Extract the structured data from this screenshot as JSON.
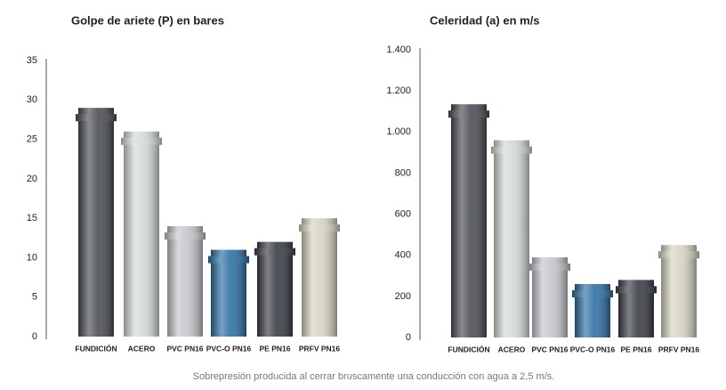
{
  "chart_data": [
    {
      "type": "bar",
      "title": "Golpe de ariete (P) en bares",
      "categories": [
        "FUNDICIÓN",
        "ACERO",
        "PVC PN16",
        "PVC-O PN16",
        "PE PN16",
        "PRFV PN16"
      ],
      "values": [
        29,
        26,
        14,
        11,
        12,
        15
      ],
      "colors": [
        "#4a4d54",
        "#d3d9d4",
        "#c4c5ca",
        "#2e6fa3",
        "#3a3d45",
        "#d6d3bf"
      ],
      "ylim": [
        0,
        35
      ],
      "yticks": [
        0,
        5,
        10,
        15,
        20,
        25,
        30,
        35
      ],
      "grid": false
    },
    {
      "type": "bar",
      "title": "Celeridad (a) en m/s",
      "categories": [
        "FUNDICIÓN",
        "ACERO",
        "PVC PN16",
        "PVC-O PN16",
        "PE PN16",
        "PRFV PN16"
      ],
      "values": [
        1135,
        960,
        390,
        260,
        280,
        450
      ],
      "colors": [
        "#4a4d54",
        "#d3d9d4",
        "#c4c5ca",
        "#2e6fa3",
        "#3a3d45",
        "#d6d3bf"
      ],
      "ylim": [
        0,
        1400
      ],
      "yticks": [
        0,
        200,
        400,
        600,
        800,
        {
          "value": 1000,
          "label": "1.000"
        },
        {
          "value": 1200,
          "label": "1.200"
        },
        {
          "value": 1400,
          "label": "1.400"
        }
      ],
      "grid": false
    }
  ],
  "caption": "Sobrepresión producida al cerrar bruscamente una conducción con agua a 2,5 m/s."
}
